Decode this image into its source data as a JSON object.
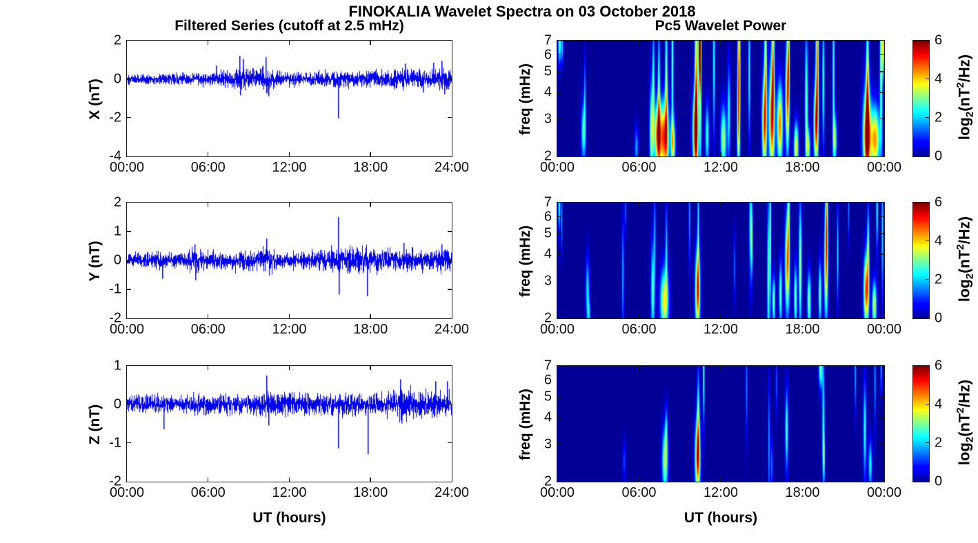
{
  "figure_title": "FINOKALIA Wavelet Spectra on 03 October 2018",
  "left_title": "Filtered Series (cutoff at 2.5 mHz)",
  "right_title": "Pc5 Wavelet Power",
  "xlabel": "UT (hours)",
  "colors": {
    "line": "#0000EE",
    "axis": "#1a1a1a",
    "background": "#ffffff"
  },
  "colorbar": {
    "ticks": [
      0,
      2,
      4,
      6
    ],
    "label": {
      "pre": "log",
      "sub": "2",
      "mid": "(nT",
      "sup": "2",
      "suffix": "/Hz)"
    }
  },
  "chart_data": [
    {
      "type": "line",
      "title": "Filtered Series (cutoff at 2.5 mHz)",
      "ylabel": "X (nT)",
      "ylim": [
        -4,
        2
      ],
      "yticks": [
        2,
        0,
        -2,
        -4
      ],
      "xlim_hours": [
        0,
        24
      ],
      "xticks_hours": [
        0,
        6,
        12,
        18,
        24
      ],
      "xticklabels": [
        "00:00",
        "06:00",
        "12:00",
        "18:00",
        "24:00"
      ],
      "seed": 101,
      "noise": {
        "base": 0.13,
        "bumps": [
          [
            3.3,
            0.5,
            0.04
          ],
          [
            5.6,
            0.5,
            0.06
          ],
          [
            7.1,
            0.4,
            0.06
          ],
          [
            8.5,
            0.9,
            0.13
          ],
          [
            10.3,
            0.6,
            0.12
          ],
          [
            12.1,
            0.8,
            0.05
          ],
          [
            14.9,
            0.9,
            0.07
          ],
          [
            16.8,
            1.2,
            0.06
          ],
          [
            19.0,
            0.8,
            0.06
          ],
          [
            20.8,
            0.9,
            0.11
          ],
          [
            23.2,
            0.9,
            0.14
          ]
        ]
      },
      "spikes": [
        [
          6.6,
          0.7
        ],
        [
          8.3,
          1.2
        ],
        [
          8.38,
          -0.85
        ],
        [
          8.6,
          1.05
        ],
        [
          10.25,
          1.15
        ],
        [
          10.3,
          -0.75
        ],
        [
          10.45,
          -0.9
        ],
        [
          15.65,
          -2.05
        ],
        [
          20.6,
          0.8
        ],
        [
          21.9,
          -0.7
        ],
        [
          22.65,
          0.85
        ],
        [
          23.3,
          0.95
        ],
        [
          23.5,
          -0.8
        ]
      ]
    },
    {
      "type": "line",
      "ylabel": "Y (nT)",
      "ylim": [
        -2,
        2
      ],
      "yticks": [
        2,
        1,
        0,
        -1,
        -2
      ],
      "xlim_hours": [
        0,
        24
      ],
      "xticks_hours": [
        0,
        6,
        12,
        18,
        24
      ],
      "xticklabels": [
        "00:00",
        "06:00",
        "12:00",
        "18:00",
        "24:00"
      ],
      "seed": 202,
      "noise": {
        "base": 0.115,
        "bumps": [
          [
            2.3,
            0.4,
            0.05
          ],
          [
            5.0,
            0.5,
            0.09
          ],
          [
            6.6,
            0.4,
            0.04
          ],
          [
            8.6,
            0.9,
            0.07
          ],
          [
            10.3,
            0.5,
            0.09
          ],
          [
            13.0,
            1.2,
            0.04
          ],
          [
            15.1,
            0.8,
            0.06
          ],
          [
            17.1,
            1.0,
            0.09
          ],
          [
            18.6,
            0.7,
            0.05
          ],
          [
            20.6,
            0.8,
            0.07
          ],
          [
            23.2,
            0.9,
            0.08
          ]
        ]
      },
      "spikes": [
        [
          2.6,
          -0.65
        ],
        [
          5.0,
          0.55
        ],
        [
          5.05,
          -0.7
        ],
        [
          10.3,
          0.75
        ],
        [
          15.63,
          1.5
        ],
        [
          15.68,
          -1.2
        ],
        [
          17.75,
          -1.25
        ],
        [
          20.5,
          0.6
        ],
        [
          23.3,
          0.55
        ]
      ]
    },
    {
      "type": "line",
      "ylabel": "Z (nT)",
      "ylim": [
        -2,
        1
      ],
      "yticks": [
        1,
        0,
        -1,
        -2
      ],
      "xlim_hours": [
        0,
        24
      ],
      "xticks_hours": [
        0,
        6,
        12,
        18,
        24
      ],
      "xticklabels": [
        "00:00",
        "06:00",
        "12:00",
        "18:00",
        "24:00"
      ],
      "seed": 303,
      "noise": {
        "base": 0.105,
        "bumps": [
          [
            2.8,
            0.5,
            0.02
          ],
          [
            5.6,
            0.8,
            0.02
          ],
          [
            8.4,
            0.8,
            0.04
          ],
          [
            10.4,
            0.5,
            0.07
          ],
          [
            12.3,
            0.8,
            0.03
          ],
          [
            14.2,
            1.2,
            0.03
          ],
          [
            17.0,
            0.9,
            0.04
          ],
          [
            20.4,
            0.9,
            0.09
          ],
          [
            22.9,
            0.9,
            0.07
          ]
        ]
      },
      "spikes": [
        [
          2.7,
          -0.65
        ],
        [
          10.3,
          0.75
        ],
        [
          10.45,
          -0.55
        ],
        [
          15.65,
          -1.15
        ],
        [
          17.8,
          -1.3
        ],
        [
          20.2,
          0.65
        ],
        [
          20.3,
          -0.5
        ],
        [
          22.85,
          0.6
        ],
        [
          23.7,
          0.6
        ]
      ]
    },
    {
      "type": "heatmap",
      "title": "Pc5 Wavelet Power",
      "ylabel": "freq (mHz)",
      "ylim": [
        2,
        7
      ],
      "ylog": true,
      "yticks": [
        7,
        6,
        5,
        4,
        3,
        2
      ],
      "xlim_hours": [
        0,
        24
      ],
      "xticks_hours": [
        0,
        6,
        12,
        18,
        24
      ],
      "xticklabels": [
        "00:00",
        "06:00",
        "12:00",
        "18:00",
        "00:00"
      ],
      "clim": [
        0,
        6
      ],
      "events": [
        [
          0.15,
          6.8,
          0.08,
          0.12,
          3.0
        ],
        [
          0.35,
          6.5,
          0.05,
          0.1,
          2.0
        ],
        [
          1.9,
          2.6,
          0.12,
          0.18,
          2.6
        ],
        [
          2.0,
          3.8,
          0.05,
          0.25,
          1.8
        ],
        [
          5.8,
          2.2,
          0.1,
          0.12,
          1.8
        ],
        [
          6.9,
          2.6,
          0.1,
          0.3,
          3.2
        ],
        [
          7.05,
          4.5,
          0.06,
          0.35,
          2.6
        ],
        [
          7.35,
          2.5,
          0.18,
          0.2,
          4.6
        ],
        [
          7.45,
          4.0,
          0.06,
          0.4,
          3.0
        ],
        [
          7.85,
          2.45,
          0.25,
          0.22,
          5.0
        ],
        [
          8.0,
          4.5,
          0.07,
          0.45,
          3.2
        ],
        [
          8.45,
          5.5,
          0.06,
          0.5,
          3.0
        ],
        [
          8.5,
          2.3,
          0.12,
          0.15,
          3.4
        ],
        [
          10.15,
          2.6,
          0.15,
          0.25,
          5.4
        ],
        [
          10.2,
          5.0,
          0.08,
          0.5,
          4.2
        ],
        [
          10.45,
          6.8,
          0.07,
          0.25,
          6.0
        ],
        [
          10.5,
          4.0,
          0.06,
          0.5,
          3.2
        ],
        [
          11.0,
          2.5,
          0.1,
          0.2,
          2.6
        ],
        [
          11.5,
          5.5,
          0.06,
          0.45,
          2.6
        ],
        [
          12.2,
          2.4,
          0.15,
          0.2,
          3.4
        ],
        [
          12.6,
          3.2,
          0.08,
          0.3,
          2.4
        ],
        [
          13.3,
          2.8,
          0.08,
          0.35,
          3.2
        ],
        [
          13.35,
          5.8,
          0.07,
          0.45,
          4.4
        ],
        [
          14.1,
          5.0,
          0.06,
          0.4,
          2.6
        ],
        [
          15.2,
          2.8,
          0.12,
          0.3,
          4.4
        ],
        [
          15.3,
          5.5,
          0.07,
          0.45,
          3.4
        ],
        [
          15.75,
          3.0,
          0.15,
          0.35,
          5.0
        ],
        [
          15.85,
          6.0,
          0.07,
          0.4,
          3.6
        ],
        [
          16.35,
          2.8,
          0.15,
          0.25,
          4.6
        ],
        [
          16.9,
          3.8,
          0.1,
          0.35,
          4.6
        ],
        [
          17.0,
          6.2,
          0.06,
          0.35,
          3.2
        ],
        [
          17.55,
          2.2,
          0.12,
          0.15,
          4.0
        ],
        [
          18.3,
          3.5,
          0.08,
          0.45,
          3.2
        ],
        [
          18.45,
          2.2,
          0.1,
          0.12,
          3.0
        ],
        [
          19.0,
          2.8,
          0.12,
          0.25,
          4.6
        ],
        [
          19.1,
          5.8,
          0.08,
          0.45,
          4.6
        ],
        [
          19.55,
          4.5,
          0.06,
          0.4,
          2.8
        ],
        [
          20.3,
          5.0,
          0.06,
          0.5,
          2.8
        ],
        [
          20.4,
          2.4,
          0.1,
          0.15,
          3.0
        ],
        [
          22.75,
          2.5,
          0.2,
          0.28,
          5.8
        ],
        [
          22.8,
          4.5,
          0.08,
          0.4,
          3.6
        ],
        [
          23.35,
          2.4,
          0.25,
          0.2,
          4.4
        ],
        [
          23.8,
          5.5,
          0.07,
          0.5,
          3.4
        ],
        [
          23.95,
          6.8,
          0.06,
          0.2,
          3.6
        ]
      ]
    },
    {
      "type": "heatmap",
      "ylabel": "freq (mHz)",
      "ylim": [
        2,
        7
      ],
      "ylog": true,
      "yticks": [
        7,
        6,
        5,
        4,
        3,
        2
      ],
      "xlim_hours": [
        0,
        24
      ],
      "xticks_hours": [
        0,
        6,
        12,
        18,
        24
      ],
      "xticklabels": [
        "00:00",
        "06:00",
        "12:00",
        "18:00",
        "00:00"
      ],
      "clim": [
        0,
        6
      ],
      "events": [
        [
          0.12,
          6.8,
          0.06,
          0.15,
          2.6
        ],
        [
          0.3,
          5.8,
          0.04,
          0.2,
          1.8
        ],
        [
          2.2,
          2.7,
          0.1,
          0.2,
          2.2
        ],
        [
          2.3,
          2.1,
          0.08,
          0.08,
          1.6
        ],
        [
          4.8,
          3.2,
          0.06,
          0.35,
          1.9
        ],
        [
          5.0,
          6.5,
          0.04,
          0.15,
          1.5
        ],
        [
          7.0,
          2.7,
          0.1,
          0.3,
          2.8
        ],
        [
          7.15,
          5.0,
          0.05,
          0.3,
          1.8
        ],
        [
          7.85,
          2.4,
          0.22,
          0.2,
          3.8
        ],
        [
          8.0,
          4.2,
          0.06,
          0.3,
          2.0
        ],
        [
          9.7,
          6.0,
          0.05,
          0.3,
          1.8
        ],
        [
          10.3,
          2.7,
          0.13,
          0.25,
          5.0
        ],
        [
          10.35,
          5.5,
          0.05,
          0.4,
          2.2
        ],
        [
          13.0,
          3.5,
          0.05,
          0.2,
          1.5
        ],
        [
          14.2,
          5.5,
          0.08,
          0.35,
          2.6
        ],
        [
          14.3,
          4.6,
          0.05,
          0.2,
          2.0
        ],
        [
          15.5,
          3.0,
          0.06,
          0.5,
          3.0
        ],
        [
          15.65,
          5.0,
          0.05,
          0.5,
          3.0
        ],
        [
          15.9,
          2.4,
          0.08,
          0.15,
          3.2
        ],
        [
          16.4,
          2.6,
          0.08,
          0.2,
          3.0
        ],
        [
          16.9,
          3.6,
          0.12,
          0.3,
          4.6
        ],
        [
          17.0,
          6.3,
          0.06,
          0.3,
          2.6
        ],
        [
          17.5,
          2.5,
          0.08,
          0.2,
          3.2
        ],
        [
          17.85,
          3.5,
          0.08,
          0.4,
          3.4
        ],
        [
          18.5,
          2.4,
          0.1,
          0.18,
          3.2
        ],
        [
          19.3,
          2.6,
          0.08,
          0.2,
          3.0
        ],
        [
          19.75,
          3.6,
          0.1,
          0.35,
          4.2
        ],
        [
          19.8,
          6.2,
          0.06,
          0.3,
          3.0
        ],
        [
          20.6,
          4.0,
          0.05,
          0.3,
          2.2
        ],
        [
          21.4,
          6.5,
          0.04,
          0.2,
          1.6
        ],
        [
          22.7,
          2.7,
          0.13,
          0.22,
          5.0
        ],
        [
          22.85,
          4.0,
          0.06,
          0.3,
          3.0
        ],
        [
          23.3,
          2.3,
          0.12,
          0.15,
          3.6
        ],
        [
          23.5,
          6.5,
          0.05,
          0.25,
          2.8
        ],
        [
          23.9,
          5.0,
          0.05,
          0.4,
          2.4
        ]
      ]
    },
    {
      "type": "heatmap",
      "ylabel": "freq (mHz)",
      "ylim": [
        2,
        7
      ],
      "ylog": true,
      "yticks": [
        7,
        6,
        5,
        4,
        3,
        2
      ],
      "xlim_hours": [
        0,
        24
      ],
      "xticks_hours": [
        0,
        6,
        12,
        18,
        24
      ],
      "xticklabels": [
        "00:00",
        "06:00",
        "12:00",
        "18:00",
        "00:00"
      ],
      "clim": [
        0,
        6
      ],
      "events": [
        [
          4.9,
          2.5,
          0.08,
          0.12,
          1.2
        ],
        [
          7.9,
          2.5,
          0.15,
          0.2,
          3.4
        ],
        [
          8.0,
          3.5,
          0.06,
          0.15,
          1.8
        ],
        [
          10.3,
          2.6,
          0.14,
          0.22,
          5.0
        ],
        [
          10.35,
          4.0,
          0.07,
          0.3,
          2.6
        ],
        [
          10.75,
          6.3,
          0.05,
          0.3,
          2.8
        ],
        [
          13.9,
          5.5,
          0.05,
          0.3,
          1.6
        ],
        [
          15.55,
          3.0,
          0.05,
          0.4,
          1.8
        ],
        [
          15.75,
          2.4,
          0.06,
          0.15,
          1.6
        ],
        [
          16.1,
          5.8,
          0.04,
          0.2,
          1.5
        ],
        [
          16.85,
          3.5,
          0.08,
          0.25,
          2.8
        ],
        [
          19.35,
          6.8,
          0.1,
          0.12,
          3.0
        ],
        [
          19.55,
          3.8,
          0.07,
          0.4,
          2.4
        ],
        [
          19.6,
          2.6,
          0.06,
          0.15,
          1.8
        ],
        [
          21.9,
          6.5,
          0.04,
          0.25,
          2.0
        ],
        [
          22.6,
          3.5,
          0.08,
          0.3,
          2.6
        ],
        [
          23.0,
          2.4,
          0.1,
          0.15,
          2.4
        ],
        [
          23.35,
          6.0,
          0.05,
          0.3,
          1.8
        ],
        [
          23.8,
          6.8,
          0.04,
          0.15,
          2.2
        ]
      ]
    }
  ]
}
